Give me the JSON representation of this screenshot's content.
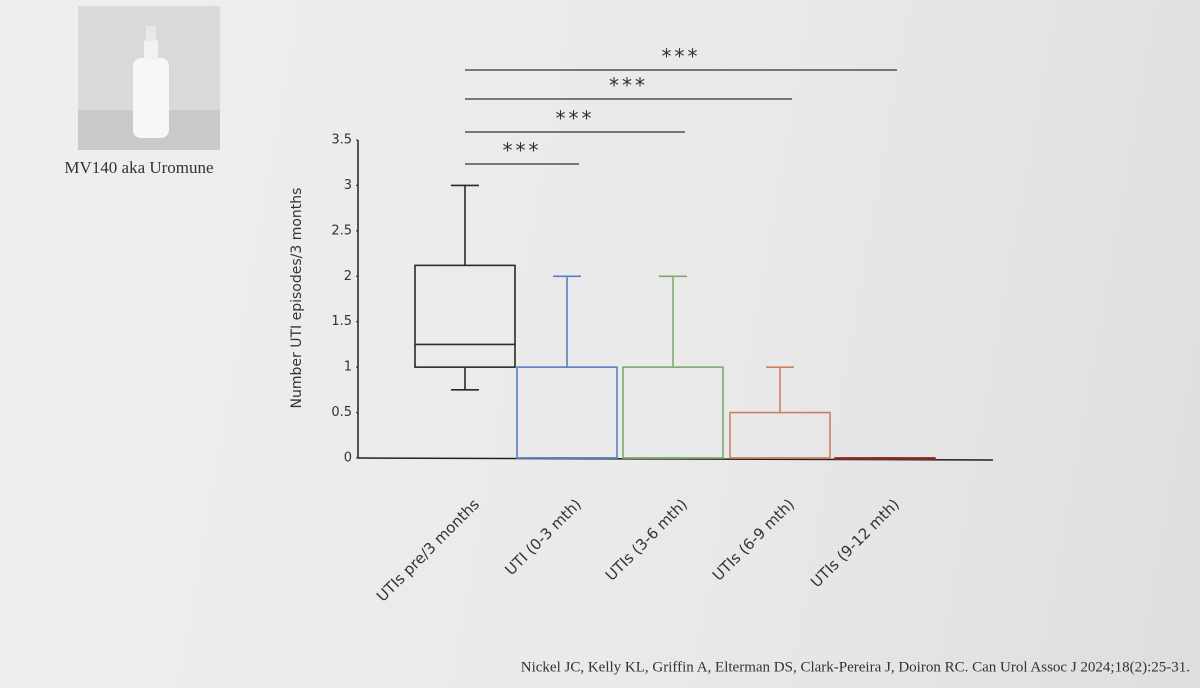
{
  "image_caption": "MV140 aka Uromune",
  "citation": "Nickel JC, Kelly KL, Griffin A, Elterman DS, Clark-Pereira J, Doiron RC. Can Urol Assoc J 2024;18(2):25-31.",
  "chart_data": {
    "type": "box",
    "ylabel": "Number UTI episodes/3 months",
    "categories": [
      "UTIs pre/3 months",
      "UTI (0-3 mth)",
      "UTIs (3-6 mth)",
      "UTIs (6-9 mth)",
      "UTIs (9-12 mth)"
    ],
    "boxes": [
      {
        "min": 0.75,
        "q1": 1,
        "median": 1.25,
        "q3": 2.12,
        "max": 3,
        "color": "#2a2a2a"
      },
      {
        "min": 0,
        "q1": 0,
        "median": 0,
        "q3": 1,
        "max": 2,
        "color": "#5a7fbf"
      },
      {
        "min": 0,
        "q1": 0,
        "median": 0,
        "q3": 1,
        "max": 2,
        "color": "#7fa86e"
      },
      {
        "min": 0,
        "q1": 0,
        "median": 0,
        "q3": 0.5,
        "max": 1,
        "color": "#cc7f62"
      },
      {
        "min": 0,
        "q1": 0,
        "median": 0,
        "q3": 0,
        "max": 0,
        "color": "#8a2b2b"
      }
    ],
    "annotations": [
      "***",
      "***",
      "***",
      "***"
    ],
    "ylim": [
      0,
      3.5
    ],
    "yticks": [
      0,
      0.5,
      1,
      1.5,
      2,
      2.5,
      3,
      3.5
    ]
  }
}
